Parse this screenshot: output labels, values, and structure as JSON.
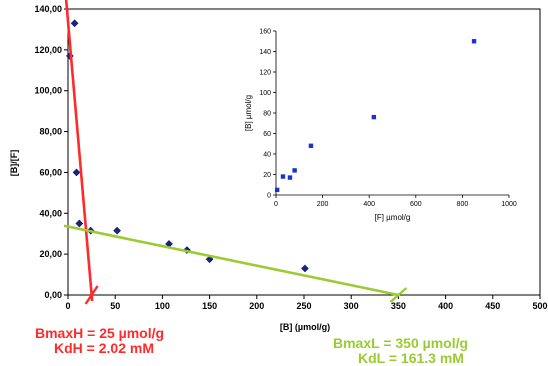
{
  "chart_data": [
    {
      "type": "scatter",
      "title": "",
      "xlabel": "[B] (µmol/g)",
      "ylabel": "[B]/[F]",
      "xlim": [
        0,
        500
      ],
      "ylim": [
        0,
        140
      ],
      "x_ticks": [
        "0",
        "50",
        "100",
        "150",
        "200",
        "250",
        "300",
        "350",
        "400",
        "450",
        "500"
      ],
      "y_ticks": [
        "0,00",
        "20,00",
        "40,00",
        "60,00",
        "80,00",
        "100,00",
        "120,00",
        "140,00"
      ],
      "grid": true,
      "colors": {
        "points": "#1a237e",
        "high_affinity_line": "#ff2a2a",
        "low_affinity_line": "#99cc33"
      },
      "series": [
        {
          "points": [
            [
              2,
              117
            ],
            [
              7,
              133
            ],
            [
              9,
              60
            ],
            [
              12,
              35
            ],
            [
              24,
              31.5
            ],
            [
              52,
              31.5
            ],
            [
              107,
              25
            ],
            [
              126,
              22
            ],
            [
              150,
              17.5
            ],
            [
              251,
              13
            ]
          ]
        }
      ],
      "fit_lines": [
        {
          "from": [
            -3,
            150
          ],
          "to": [
            25,
            0
          ]
        },
        {
          "from": [
            0,
            33.5
          ],
          "to": [
            350,
            0
          ]
        }
      ],
      "annotations": {
        "high": {
          "line1": "BmaxH = 25 µmol/g",
          "line2": "KdH = 2.02 mM"
        },
        "low": {
          "line1": "BmaxL = 350 µmol/g",
          "line2": "KdL = 161.3 mM"
        }
      }
    },
    {
      "type": "scatter",
      "title": "",
      "xlabel": "[F] µmol/g",
      "ylabel": "[B] µmol/g",
      "xlim": [
        0,
        1000
      ],
      "ylim": [
        0,
        160
      ],
      "x_ticks": [
        "0",
        "200",
        "400",
        "600",
        "800",
        "1000"
      ],
      "y_ticks": [
        "0",
        "20",
        "40",
        "60",
        "80",
        "100",
        "120",
        "140",
        "160"
      ],
      "grid": false,
      "series": [
        {
          "points": [
            [
              5,
              5
            ],
            [
              30,
              18
            ],
            [
              60,
              17
            ],
            [
              80,
              24
            ],
            [
              150,
              48
            ],
            [
              420,
              76
            ],
            [
              850,
              150
            ]
          ]
        }
      ]
    }
  ]
}
